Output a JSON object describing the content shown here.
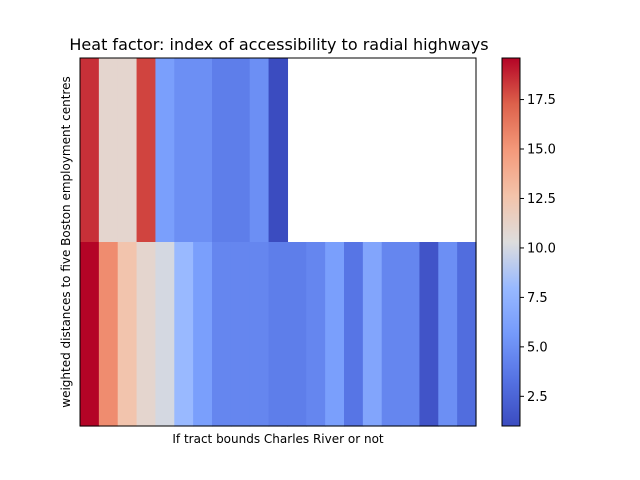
{
  "chart_data": {
    "type": "heatmap",
    "title": "Heat factor: index of accessibility to radial highways",
    "xlabel": "If tract bounds Charles River or not",
    "ylabel": "weighted distances to five Boston employment centres",
    "colormap": "coolwarm",
    "vmin": 1,
    "vmax": 19.6,
    "rows": [
      {
        "values": [
          18.5,
          11,
          11,
          18,
          6,
          5,
          5,
          4,
          4,
          5,
          1,
          null,
          null,
          null,
          null,
          null,
          null,
          null,
          null,
          null,
          null
        ]
      },
      {
        "values": [
          19.6,
          15.5,
          12.5,
          11,
          10,
          8,
          6,
          4.5,
          4.5,
          4.5,
          4,
          4,
          4.5,
          6,
          3.5,
          6.5,
          4.5,
          4.5,
          1.5,
          5,
          3
        ]
      }
    ],
    "colorbar": {
      "ticks": [
        2.5,
        5.0,
        7.5,
        10.0,
        12.5,
        15.0,
        17.5
      ],
      "tick_labels": [
        "2.5",
        "5.0",
        "7.5",
        "10.0",
        "12.5",
        "15.0",
        "17.5"
      ]
    },
    "grid": false
  }
}
